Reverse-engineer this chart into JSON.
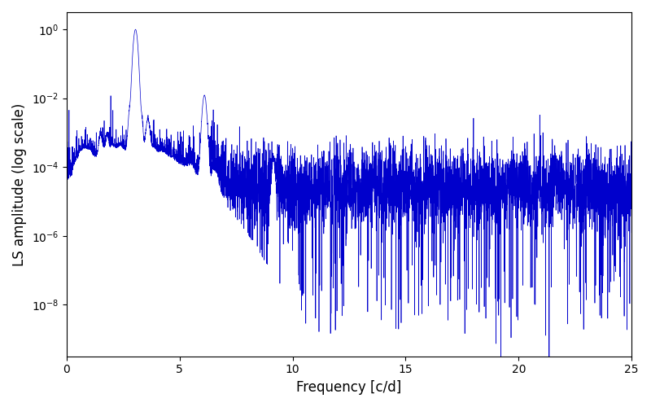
{
  "title": "",
  "xlabel": "Frequency [c/d]",
  "ylabel": "LS amplitude (log scale)",
  "xlim": [
    0,
    25
  ],
  "ylim_log": [
    -9.5,
    0.5
  ],
  "line_color": "#0000cc",
  "line_width": 0.5,
  "figsize": [
    8.0,
    5.0
  ],
  "dpi": 100,
  "background_color": "#ffffff",
  "seed": 12345,
  "n_points": 5000,
  "freq_max": 25.0,
  "main_peak_freq": 3.05,
  "main_peak_amp": 1.0,
  "harmonic_peaks": [
    {
      "freq": 6.1,
      "amp": 0.012
    },
    {
      "freq": 9.15,
      "amp": 0.0003
    },
    {
      "freq": 3.3,
      "amp": 0.003
    },
    {
      "freq": 3.6,
      "amp": 0.002
    },
    {
      "freq": 2.8,
      "amp": 0.004
    },
    {
      "freq": 1.5,
      "amp": 0.0006
    },
    {
      "freq": 1.8,
      "amp": 0.0005
    }
  ],
  "noise_floor_log_mean": -4.3,
  "noise_floor_log_std": 0.6,
  "dip_prob": 0.05,
  "dip_depth": 4.0,
  "xticks": [
    0,
    5,
    10,
    15,
    20,
    25
  ]
}
